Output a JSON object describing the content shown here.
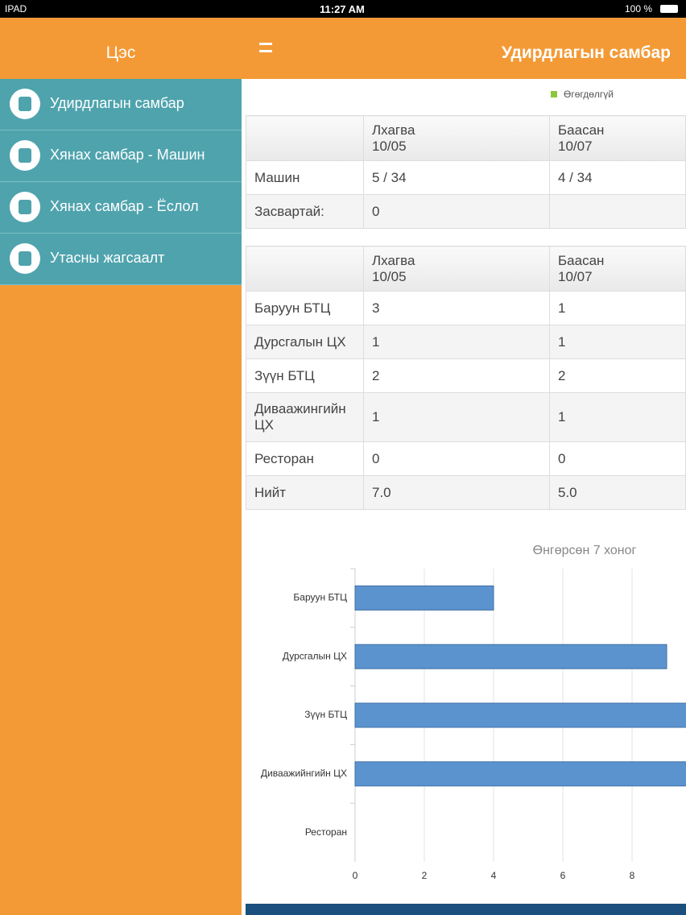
{
  "status": {
    "device": "IPAD",
    "time": "11:27 AM",
    "battery": "100 %"
  },
  "sidebar": {
    "title": "Цэс",
    "items": [
      "Удирдлагын самбар",
      "Хянах самбар - Машин",
      "Хянах самбар - Ёслол",
      "Утасны жагсаалт"
    ]
  },
  "header": {
    "title": "Удирдлагын самбар"
  },
  "legend_note": "Өгөгдөлгүй",
  "tables": [
    {
      "columns": [
        {
          "day": "Лхагва",
          "date": "10/05"
        },
        {
          "day": "Баасан",
          "date": "10/07"
        }
      ],
      "rows": [
        [
          "Машин",
          "5 / 34",
          "4 / 34"
        ],
        [
          "Засвартай:",
          "0"
        ]
      ]
    },
    {
      "columns": [
        {
          "day": "Лхагва",
          "date": "10/05"
        },
        {
          "day": "Баасан",
          "date": "10/07"
        }
      ],
      "rows": [
        [
          "Баруун БТЦ",
          "3",
          "1"
        ],
        [
          "Дурсгалын ЦХ",
          "1",
          "1"
        ],
        [
          "Зүүн БТЦ",
          "2",
          "2"
        ],
        [
          "Диваажингийн ЦХ",
          "1",
          "1"
        ],
        [
          "Ресторан",
          "0",
          "0"
        ],
        [
          "Нийт",
          "7.0",
          "5.0"
        ]
      ]
    }
  ],
  "chart_data": {
    "type": "hbar",
    "title": "Өнгөрсөн 7 хоног",
    "categories": [
      "Баруун БТЦ",
      "Дурсгалын ЦХ",
      "Зүүн БТЦ",
      "Диваажийнгийн ЦХ",
      "Ресторан"
    ],
    "values": [
      4,
      9,
      10,
      10,
      0
    ],
    "color": "#5b93cf",
    "xlim": [
      0,
      10
    ],
    "xticks": [
      0,
      2,
      4,
      6,
      8
    ],
    "grid": true
  }
}
